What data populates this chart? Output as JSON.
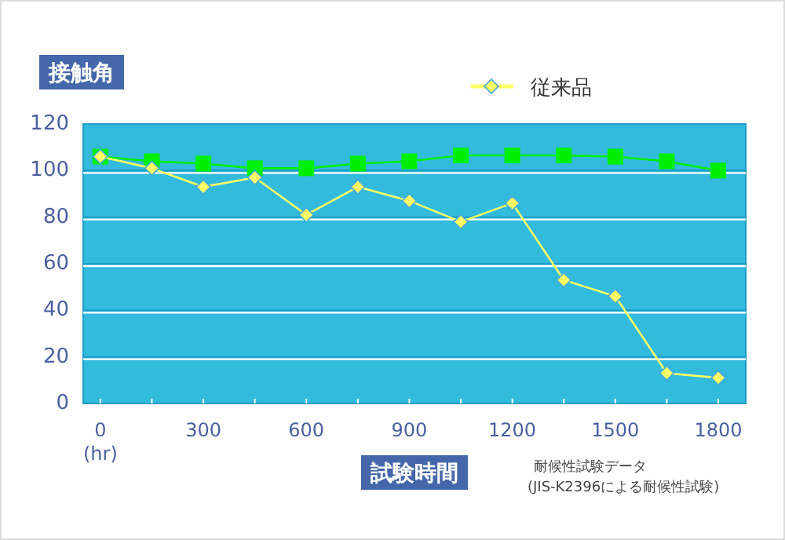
{
  "chart_data": {
    "type": "line",
    "xlabel": "試験時間",
    "ylabel": "接触角",
    "x": [
      0,
      150,
      300,
      450,
      600,
      750,
      900,
      1050,
      1200,
      1350,
      1500,
      1650,
      1800
    ],
    "series": [
      {
        "color": "#00ee00",
        "marker": "square",
        "values": [
          106,
          104,
          103,
          101,
          101,
          103,
          104,
          106.5,
          106.5,
          106.5,
          106,
          104,
          100
        ]
      },
      {
        "name": "従来品",
        "color": "#ffff66",
        "marker": "diamond",
        "values": [
          106,
          101,
          93,
          97,
          81,
          93,
          87,
          78,
          86,
          53,
          46,
          13,
          11
        ]
      }
    ],
    "xlim": [
      -50,
      1880
    ],
    "ylim": [
      0,
      120
    ],
    "xticks": [
      0,
      {
        "value": 150,
        "label": null
      },
      300,
      {
        "value": 450,
        "label": null
      },
      600,
      {
        "value": 750,
        "label": null
      },
      900,
      {
        "value": 1050,
        "label": null
      },
      1200,
      {
        "value": 1350,
        "label": null
      },
      1500,
      {
        "value": 1650,
        "label": null
      },
      1800
    ],
    "yticks": [
      0,
      20,
      40,
      60,
      80,
      100,
      120
    ],
    "grid": "y",
    "legend": "top right",
    "line_style": "solid",
    "annotations": [
      "(hr)",
      "耐候性試験データ",
      "(JIS-K2396による耐候性試験)"
    ]
  }
}
